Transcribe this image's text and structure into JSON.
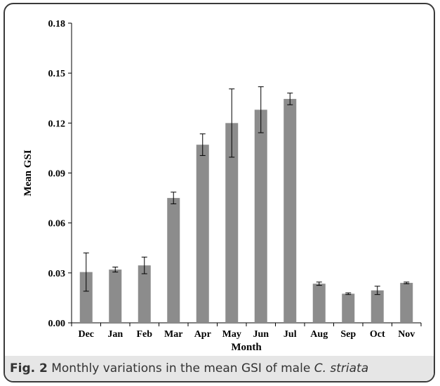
{
  "caption": {
    "label": "Fig. 2",
    "text": " Monthly variations in the mean GSI of male ",
    "species": "C. striata"
  },
  "chart_data": {
    "type": "bar",
    "categories": [
      "Dec",
      "Jan",
      "Feb",
      "Mar",
      "Apr",
      "May",
      "Jun",
      "Jul",
      "Aug",
      "Sep",
      "Oct",
      "Nov"
    ],
    "values": [
      0.0305,
      0.032,
      0.0345,
      0.075,
      0.107,
      0.12,
      0.128,
      0.1345,
      0.0235,
      0.0175,
      0.0195,
      0.024
    ],
    "errors": [
      0.0115,
      0.0015,
      0.005,
      0.0035,
      0.0065,
      0.0205,
      0.0138,
      0.0035,
      0.001,
      0.0005,
      0.0025,
      0.0005
    ],
    "title": "",
    "xlabel": "Month",
    "ylabel": "Mean GSI",
    "ylim": [
      0,
      0.18
    ],
    "yticks": [
      "0.00",
      "0.03",
      "0.06",
      "0.09",
      "0.12",
      "0.15",
      "0.18"
    ],
    "ytick_values": [
      0,
      0.03,
      0.06,
      0.09,
      0.12,
      0.15,
      0.18
    ],
    "bar_color": "#8c8c8c",
    "grid": false,
    "legend": "none"
  }
}
